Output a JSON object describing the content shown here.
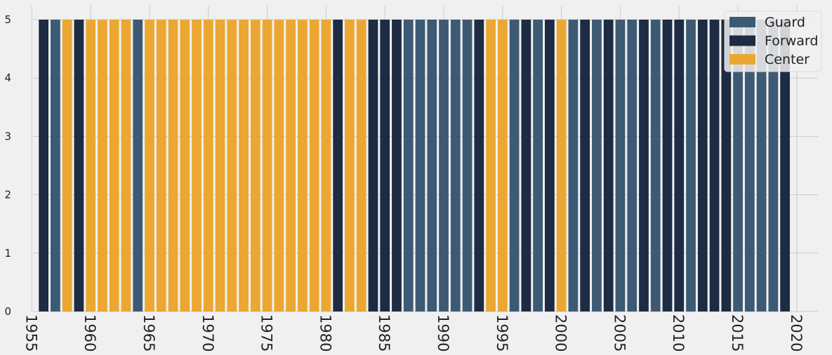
{
  "chart_data": {
    "type": "bar",
    "title": "",
    "xlabel": "",
    "ylabel": "",
    "ylim": [
      0,
      5
    ],
    "xlim": [
      1954.5,
      2021.5
    ],
    "yticks": [
      0,
      1,
      2,
      3,
      4,
      5
    ],
    "xticks": [
      1955,
      1960,
      1965,
      1970,
      1975,
      1980,
      1985,
      1990,
      1995,
      2000,
      2005,
      2010,
      2015,
      2020
    ],
    "grid": true,
    "legend_position": "top-right",
    "colors": {
      "Guard": "#3d5a75",
      "Forward": "#1d2b43",
      "Center": "#eba731"
    },
    "series_names": [
      "Guard",
      "Forward",
      "Center"
    ],
    "bars": [
      {
        "x": 1956,
        "value": 5,
        "position": "Forward"
      },
      {
        "x": 1957,
        "value": 5,
        "position": "Guard"
      },
      {
        "x": 1958,
        "value": 5,
        "position": "Center"
      },
      {
        "x": 1959,
        "value": 5,
        "position": "Forward"
      },
      {
        "x": 1960,
        "value": 5,
        "position": "Center"
      },
      {
        "x": 1961,
        "value": 5,
        "position": "Center"
      },
      {
        "x": 1962,
        "value": 5,
        "position": "Center"
      },
      {
        "x": 1963,
        "value": 5,
        "position": "Center"
      },
      {
        "x": 1964,
        "value": 5,
        "position": "Guard"
      },
      {
        "x": 1965,
        "value": 5,
        "position": "Center"
      },
      {
        "x": 1966,
        "value": 5,
        "position": "Center"
      },
      {
        "x": 1967,
        "value": 5,
        "position": "Center"
      },
      {
        "x": 1968,
        "value": 5,
        "position": "Center"
      },
      {
        "x": 1969,
        "value": 5,
        "position": "Center"
      },
      {
        "x": 1970,
        "value": 5,
        "position": "Center"
      },
      {
        "x": 1971,
        "value": 5,
        "position": "Center"
      },
      {
        "x": 1972,
        "value": 5,
        "position": "Center"
      },
      {
        "x": 1973,
        "value": 5,
        "position": "Center"
      },
      {
        "x": 1974,
        "value": 5,
        "position": "Center"
      },
      {
        "x": 1975,
        "value": 5,
        "position": "Center"
      },
      {
        "x": 1976,
        "value": 5,
        "position": "Center"
      },
      {
        "x": 1977,
        "value": 5,
        "position": "Center"
      },
      {
        "x": 1978,
        "value": 5,
        "position": "Center"
      },
      {
        "x": 1979,
        "value": 5,
        "position": "Center"
      },
      {
        "x": 1980,
        "value": 5,
        "position": "Center"
      },
      {
        "x": 1981,
        "value": 5,
        "position": "Forward"
      },
      {
        "x": 1982,
        "value": 5,
        "position": "Center"
      },
      {
        "x": 1983,
        "value": 5,
        "position": "Center"
      },
      {
        "x": 1984,
        "value": 5,
        "position": "Forward"
      },
      {
        "x": 1985,
        "value": 5,
        "position": "Forward"
      },
      {
        "x": 1986,
        "value": 5,
        "position": "Forward"
      },
      {
        "x": 1987,
        "value": 5,
        "position": "Guard"
      },
      {
        "x": 1988,
        "value": 5,
        "position": "Guard"
      },
      {
        "x": 1989,
        "value": 5,
        "position": "Guard"
      },
      {
        "x": 1990,
        "value": 5,
        "position": "Guard"
      },
      {
        "x": 1991,
        "value": 5,
        "position": "Guard"
      },
      {
        "x": 1992,
        "value": 5,
        "position": "Guard"
      },
      {
        "x": 1993,
        "value": 5,
        "position": "Forward"
      },
      {
        "x": 1994,
        "value": 5,
        "position": "Center"
      },
      {
        "x": 1995,
        "value": 5,
        "position": "Center"
      },
      {
        "x": 1996,
        "value": 5,
        "position": "Guard"
      },
      {
        "x": 1997,
        "value": 5,
        "position": "Forward"
      },
      {
        "x": 1998,
        "value": 5,
        "position": "Guard"
      },
      {
        "x": 1999,
        "value": 5,
        "position": "Forward"
      },
      {
        "x": 2000,
        "value": 5,
        "position": "Center"
      },
      {
        "x": 2001,
        "value": 5,
        "position": "Guard"
      },
      {
        "x": 2002,
        "value": 5,
        "position": "Forward"
      },
      {
        "x": 2003,
        "value": 5,
        "position": "Guard"
      },
      {
        "x": 2004,
        "value": 5,
        "position": "Forward"
      },
      {
        "x": 2005,
        "value": 5,
        "position": "Guard"
      },
      {
        "x": 2006,
        "value": 5,
        "position": "Guard"
      },
      {
        "x": 2007,
        "value": 5,
        "position": "Forward"
      },
      {
        "x": 2008,
        "value": 5,
        "position": "Guard"
      },
      {
        "x": 2009,
        "value": 5,
        "position": "Forward"
      },
      {
        "x": 2010,
        "value": 5,
        "position": "Forward"
      },
      {
        "x": 2011,
        "value": 5,
        "position": "Guard"
      },
      {
        "x": 2012,
        "value": 5,
        "position": "Forward"
      },
      {
        "x": 2013,
        "value": 5,
        "position": "Forward"
      },
      {
        "x": 2014,
        "value": 5,
        "position": "Forward"
      },
      {
        "x": 2015,
        "value": 5,
        "position": "Guard"
      },
      {
        "x": 2016,
        "value": 5,
        "position": "Guard"
      },
      {
        "x": 2017,
        "value": 5,
        "position": "Guard"
      },
      {
        "x": 2018,
        "value": 5,
        "position": "Guard"
      },
      {
        "x": 2019,
        "value": 5,
        "position": "Forward"
      }
    ]
  }
}
